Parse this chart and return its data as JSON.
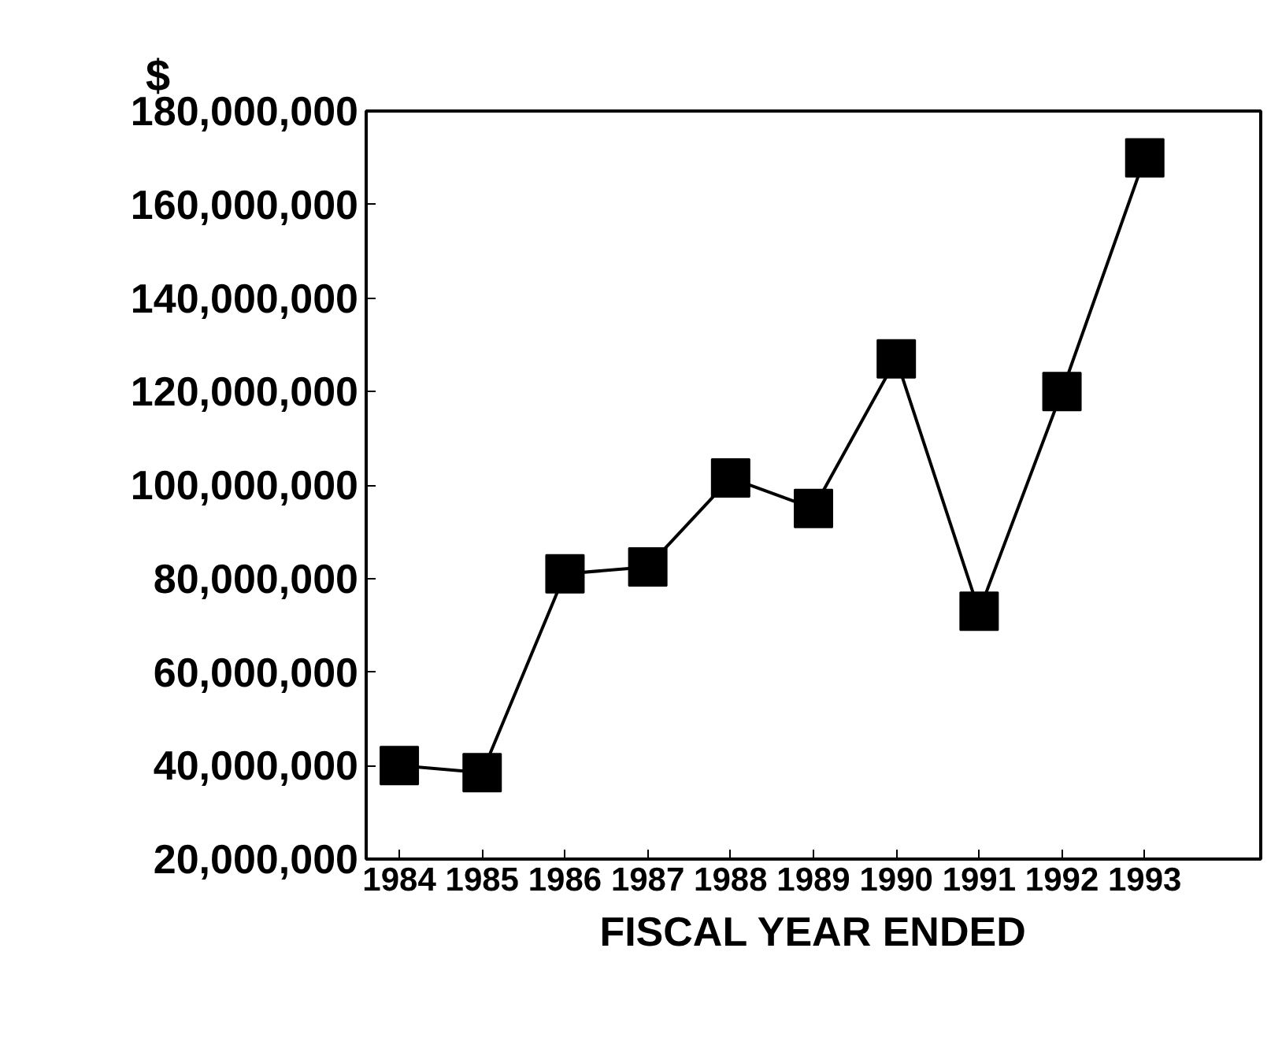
{
  "chart_data": {
    "type": "line",
    "ylabel": "$",
    "xlabel": "FISCAL YEAR ENDED",
    "x": [
      1984,
      1985,
      1986,
      1987,
      1988,
      1989,
      1990,
      1991,
      1992,
      1993
    ],
    "values": [
      40000000,
      38500000,
      81000000,
      82500000,
      101500000,
      95000000,
      127000000,
      73000000,
      120000000,
      170000000
    ],
    "color": "#000000",
    "marker": "square",
    "line_style": "solid",
    "grid": false,
    "xlim": [
      1983.6,
      1994.4
    ],
    "xticks": [
      1984,
      1985,
      1986,
      1987,
      1988,
      1989,
      1990,
      1991,
      1992,
      1993
    ],
    "ylim": [
      20000000,
      180000000
    ],
    "yticks": [
      {
        "value": 20000000,
        "label": "20,000,000"
      },
      {
        "value": 40000000,
        "label": "40,000,000"
      },
      {
        "value": 60000000,
        "label": "60,000,000"
      },
      {
        "value": 80000000,
        "label": "80,000,000"
      },
      {
        "value": 100000000,
        "label": "100,000,000"
      },
      {
        "value": 120000000,
        "label": "120,000,000"
      },
      {
        "value": 140000000,
        "label": "140,000,000"
      },
      {
        "value": 160000000,
        "label": "160,000,000"
      },
      {
        "value": 180000000,
        "label": "180,000,000"
      }
    ]
  }
}
